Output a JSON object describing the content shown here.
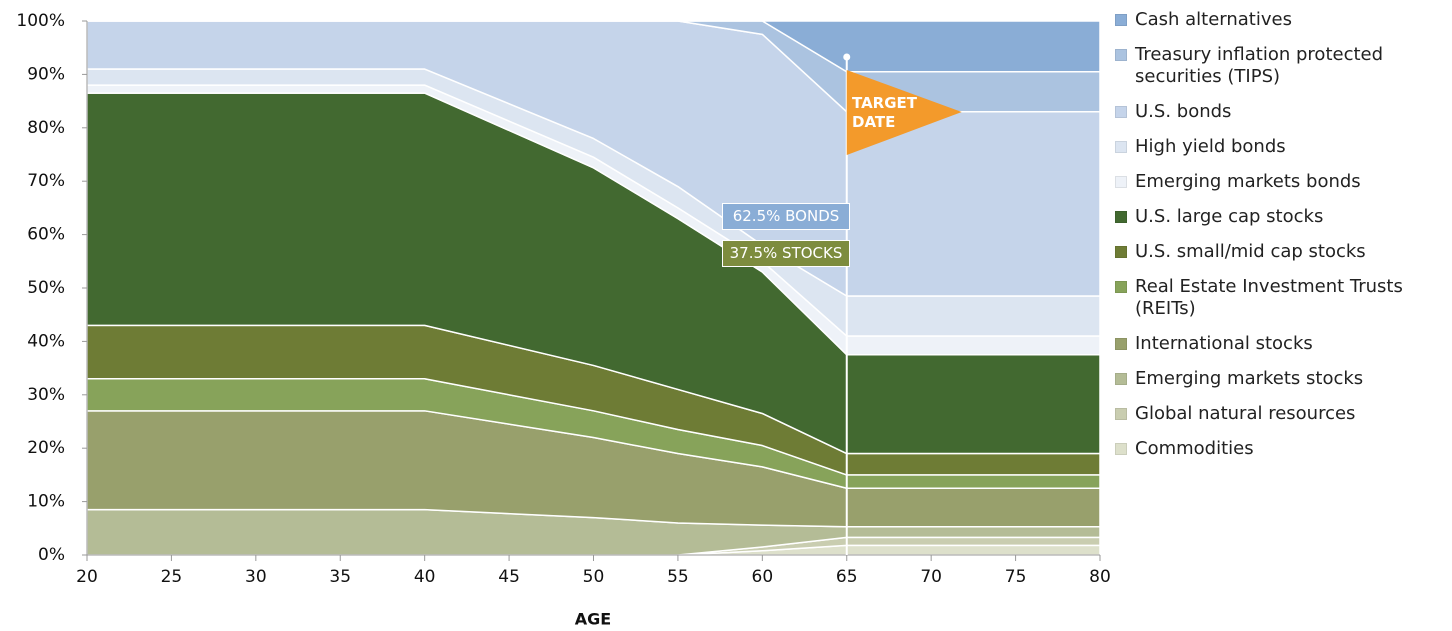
{
  "chart_data": {
    "type": "area",
    "stacked": true,
    "x_label": "AGE",
    "x": [
      20,
      40,
      50,
      55,
      60,
      65,
      80
    ],
    "xlim": [
      20,
      80
    ],
    "xticks": [
      20,
      25,
      30,
      35,
      40,
      45,
      50,
      55,
      60,
      65,
      70,
      75,
      80
    ],
    "ylim": [
      0,
      100
    ],
    "yticks": [
      {
        "value": 0,
        "label": "0%"
      },
      {
        "value": 10,
        "label": "10%"
      },
      {
        "value": 20,
        "label": "20%"
      },
      {
        "value": 30,
        "label": "30%"
      },
      {
        "value": 40,
        "label": "40%"
      },
      {
        "value": 50,
        "label": "50%"
      },
      {
        "value": 60,
        "label": "60%"
      },
      {
        "value": 70,
        "label": "70%"
      },
      {
        "value": 80,
        "label": "80%"
      },
      {
        "value": 90,
        "label": "90%"
      },
      {
        "value": 100,
        "label": "100%"
      }
    ],
    "series": [
      {
        "name": "Commodities",
        "color": "#dde0cb",
        "values": [
          0,
          0,
          0,
          0,
          0.8,
          1.8,
          1.8
        ]
      },
      {
        "name": "Global natural resources",
        "color": "#c9cdb0",
        "values": [
          0,
          0,
          0,
          0,
          0.7,
          1.5,
          1.5
        ]
      },
      {
        "name": "Emerging markets stocks",
        "color": "#b4bc96",
        "values": [
          8.5,
          8.5,
          7,
          6,
          4.1,
          2,
          2
        ]
      },
      {
        "name": "International stocks",
        "color": "#98a06c",
        "values": [
          18.5,
          18.5,
          15,
          13,
          10.9,
          7.2,
          7.2
        ]
      },
      {
        "name": "Real Estate Investment Trusts (REITs)",
        "color": "#87a35a",
        "values": [
          6,
          6,
          5,
          4.5,
          4,
          2.5,
          2.5
        ]
      },
      {
        "name": "U.S. small/mid cap stocks",
        "color": "#6e7c35",
        "values": [
          10,
          10,
          8.5,
          7.5,
          6,
          4,
          4
        ]
      },
      {
        "name": "U.S. large cap stocks",
        "color": "#426930",
        "values": [
          43.5,
          43.5,
          37,
          32,
          26.5,
          18.5,
          18.5
        ]
      },
      {
        "name": "Emerging markets bonds",
        "color": "#eef2f8",
        "values": [
          1.5,
          1.5,
          2,
          2,
          2,
          3.5,
          3.5
        ]
      },
      {
        "name": "High yield bonds",
        "color": "#dce5f1",
        "values": [
          3,
          3,
          3.5,
          4,
          3,
          7.5,
          7.5
        ]
      },
      {
        "name": "U.S. bonds",
        "color": "#c5d4ea",
        "values": [
          9,
          9,
          22,
          31,
          39.5,
          34.5,
          34.5
        ]
      },
      {
        "name": "Treasury inflation protected securities (TIPS)",
        "color": "#abc3e0",
        "values": [
          0,
          0,
          0,
          0,
          2.5,
          7.5,
          7.5
        ]
      },
      {
        "name": "Cash alternatives",
        "color": "#8aadd6",
        "values": [
          0,
          0,
          0,
          0,
          0,
          9.5,
          9.5
        ]
      }
    ],
    "annotations": [
      {
        "text": "62.5% BONDS",
        "color": "#8aadd6"
      },
      {
        "text": "37.5% STOCKS",
        "color": "#7d8c3e"
      },
      {
        "text": "TARGET DATE",
        "color": "#f39a2b"
      }
    ]
  }
}
